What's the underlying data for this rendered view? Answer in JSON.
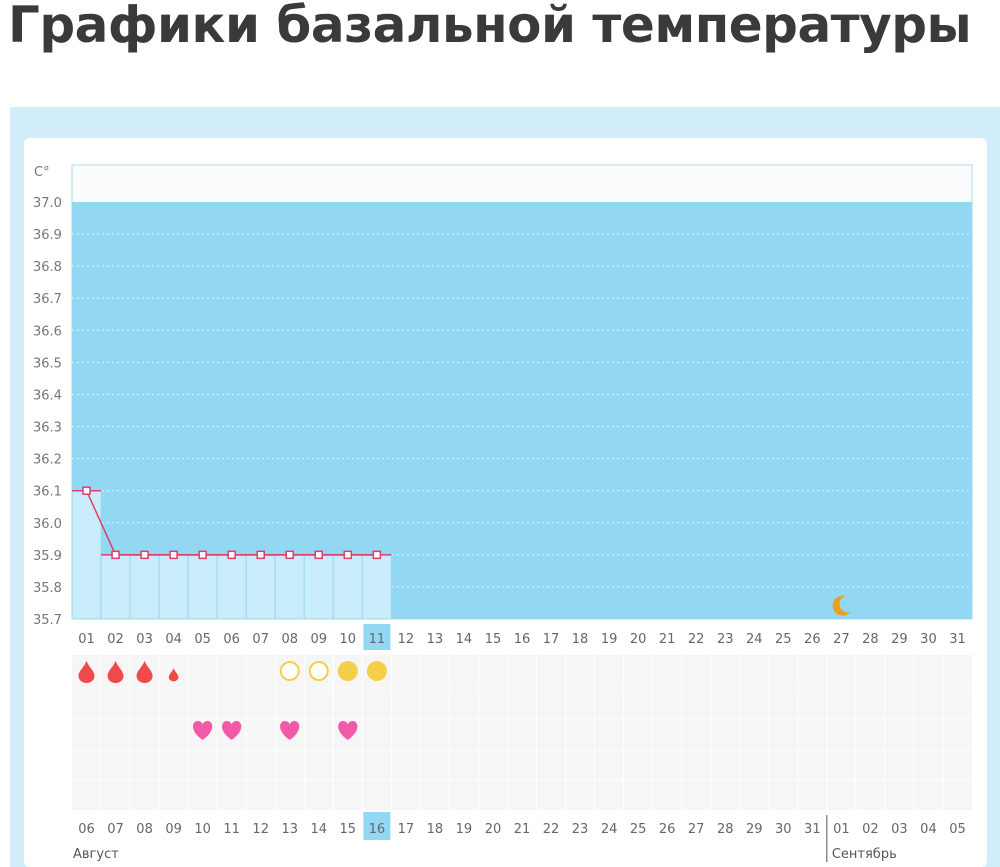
{
  "title": "Графики базальной температуры",
  "chart_data": {
    "type": "line",
    "ylabel": "C°",
    "ylim": [
      35.7,
      37.0
    ],
    "yticks": [
      "37.0",
      "36.9",
      "36.8",
      "36.7",
      "36.6",
      "36.5",
      "36.4",
      "36.3",
      "36.2",
      "36.1",
      "36.0",
      "35.9",
      "35.8",
      "35.7"
    ],
    "cycle_days": [
      "01",
      "02",
      "03",
      "04",
      "05",
      "06",
      "07",
      "08",
      "09",
      "10",
      "11",
      "12",
      "13",
      "14",
      "15",
      "16",
      "17",
      "18",
      "19",
      "20",
      "21",
      "22",
      "23",
      "24",
      "25",
      "26",
      "27",
      "28",
      "29",
      "30",
      "31"
    ],
    "current_cycle_day": "11",
    "series": [
      {
        "values": [
          36.1,
          35.9,
          35.9,
          35.9,
          35.9,
          35.9,
          35.9,
          35.9,
          35.9,
          35.9,
          35.9
        ]
      }
    ],
    "line_color": "#d9416b",
    "markers": {
      "bleeding": {
        "days": [
          "01",
          "02",
          "03",
          "04"
        ],
        "sizes": [
          "large",
          "large",
          "large",
          "small"
        ],
        "color": "#f04a4a"
      },
      "mucus_open": {
        "days": [
          "08",
          "09"
        ],
        "color": "#f5cf4a"
      },
      "mucus_filled": {
        "days": [
          "10",
          "11"
        ],
        "color": "#f5cf4a"
      },
      "intercourse": {
        "days": [
          "05",
          "06",
          "08",
          "10"
        ],
        "color": "#f25aa8"
      },
      "moon": {
        "days": [
          "27"
        ],
        "color": "#e8a020"
      }
    },
    "calendar_dates": [
      "06",
      "07",
      "08",
      "09",
      "10",
      "11",
      "12",
      "13",
      "14",
      "15",
      "16",
      "17",
      "18",
      "19",
      "20",
      "21",
      "22",
      "23",
      "24",
      "25",
      "26",
      "27",
      "28",
      "29",
      "30",
      "31",
      "01",
      "02",
      "03",
      "04",
      "05"
    ],
    "weekend_dates": [
      "10",
      "11",
      "17",
      "18",
      "24",
      "25",
      "31",
      "01"
    ],
    "today_date": "16",
    "months": [
      "Август",
      "Сентябрь"
    ],
    "colors": {
      "plot": "#92d8f2",
      "filled": "#c9ecfa",
      "weekend": "#e0245e",
      "highlight": "#92d8f2"
    }
  }
}
